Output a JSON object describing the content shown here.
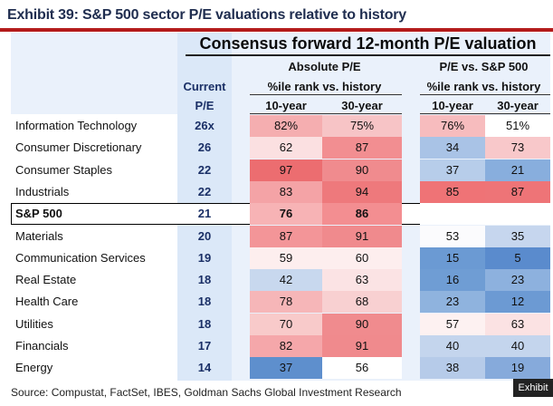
{
  "title": "Exhibit 39: S&P 500 sector P/E valuations relative to history",
  "main_header": "Consensus forward 12-month P/E valuation",
  "headers": {
    "absolute": "Absolute P/E",
    "relative": "P/E vs. S&P 500",
    "current_line1": "Current",
    "current_line2": "P/E",
    "pct_rank": "%ile rank vs. history",
    "ten_year": "10-year",
    "thirty_year": "30-year"
  },
  "rows": [
    {
      "name": "Information Technology",
      "pe": "26x",
      "abs10": "82%",
      "abs30": "75%",
      "rel10": "76%",
      "rel30": "51%",
      "c_abs10": "#f5aeb0",
      "c_abs30": "#f7c4c6",
      "c_rel10": "#f7bcbe",
      "c_rel30": "#ffffff"
    },
    {
      "name": "Consumer Discretionary",
      "pe": "26",
      "abs10": "62",
      "abs30": "87",
      "rel10": "34",
      "rel30": "73",
      "c_abs10": "#fbe0e1",
      "c_abs30": "#f28e91",
      "c_rel10": "#a9c3e6",
      "c_rel30": "#f8c8ca"
    },
    {
      "name": "Consumer Staples",
      "pe": "22",
      "abs10": "97",
      "abs30": "90",
      "rel10": "37",
      "rel30": "21",
      "c_abs10": "#ec6d70",
      "c_abs30": "#f08b8e",
      "c_rel10": "#b7cdea",
      "c_rel30": "#88aedd"
    },
    {
      "name": "Industrials",
      "pe": "22",
      "abs10": "83",
      "abs30": "94",
      "rel10": "85",
      "rel30": "87",
      "c_abs10": "#f4a3a6",
      "c_abs30": "#ee797c",
      "c_rel10": "#ef7376",
      "c_rel30": "#ee7477"
    },
    {
      "name": "S&P 500",
      "pe": "21",
      "abs10": "76",
      "abs30": "86",
      "rel10": "",
      "rel30": "",
      "c_abs10": "#f7b3b5",
      "c_abs30": "#f38e91",
      "c_rel10": "#ffffff",
      "c_rel30": "#ffffff"
    },
    {
      "name": "Materials",
      "pe": "20",
      "abs10": "87",
      "abs30": "91",
      "rel10": "53",
      "rel30": "35",
      "c_abs10": "#f39598",
      "c_abs30": "#f08a8d",
      "c_rel10": "#fbfbfd",
      "c_rel30": "#c6d6ee"
    },
    {
      "name": "Communication Services",
      "pe": "19",
      "abs10": "59",
      "abs30": "60",
      "rel10": "15",
      "rel30": "5",
      "c_abs10": "#fdeeee",
      "c_abs30": "#fdeeee",
      "c_rel10": "#6b9ad3",
      "c_rel30": "#5a8bcd"
    },
    {
      "name": "Real Estate",
      "pe": "18",
      "abs10": "42",
      "abs30": "63",
      "rel10": "16",
      "rel30": "23",
      "c_abs10": "#c8d8ee",
      "c_abs30": "#fbe3e4",
      "c_rel10": "#6f9dd4",
      "c_rel30": "#8db1de"
    },
    {
      "name": "Health Care",
      "pe": "18",
      "abs10": "78",
      "abs30": "68",
      "rel10": "23",
      "rel30": "12",
      "c_abs10": "#f6b6b8",
      "c_abs30": "#f8d0d1",
      "c_rel10": "#8fb3de",
      "c_rel30": "#6c9ad3"
    },
    {
      "name": "Utilities",
      "pe": "18",
      "abs10": "70",
      "abs30": "90",
      "rel10": "57",
      "rel30": "63",
      "c_abs10": "#f8caca",
      "c_abs30": "#f08b8e",
      "c_rel10": "#fdf1f1",
      "c_rel30": "#fbe2e3"
    },
    {
      "name": "Financials",
      "pe": "17",
      "abs10": "82",
      "abs30": "91",
      "rel10": "40",
      "rel30": "40",
      "c_abs10": "#f5a7aa",
      "c_abs30": "#f08a8d",
      "c_rel10": "#c4d5ed",
      "c_rel30": "#c4d5ed"
    },
    {
      "name": "Energy",
      "pe": "14",
      "abs10": "37",
      "abs30": "56",
      "rel10": "38",
      "rel30": "19",
      "c_abs10": "#5e8fcd",
      "c_abs30": "#ffffff",
      "c_rel10": "#b6cbe9",
      "c_rel30": "#86aadb"
    }
  ],
  "source": "Source: Compustat, FactSet, IBES, Goldman Sachs Global Investment Research",
  "tooltip": "Exhibit"
}
